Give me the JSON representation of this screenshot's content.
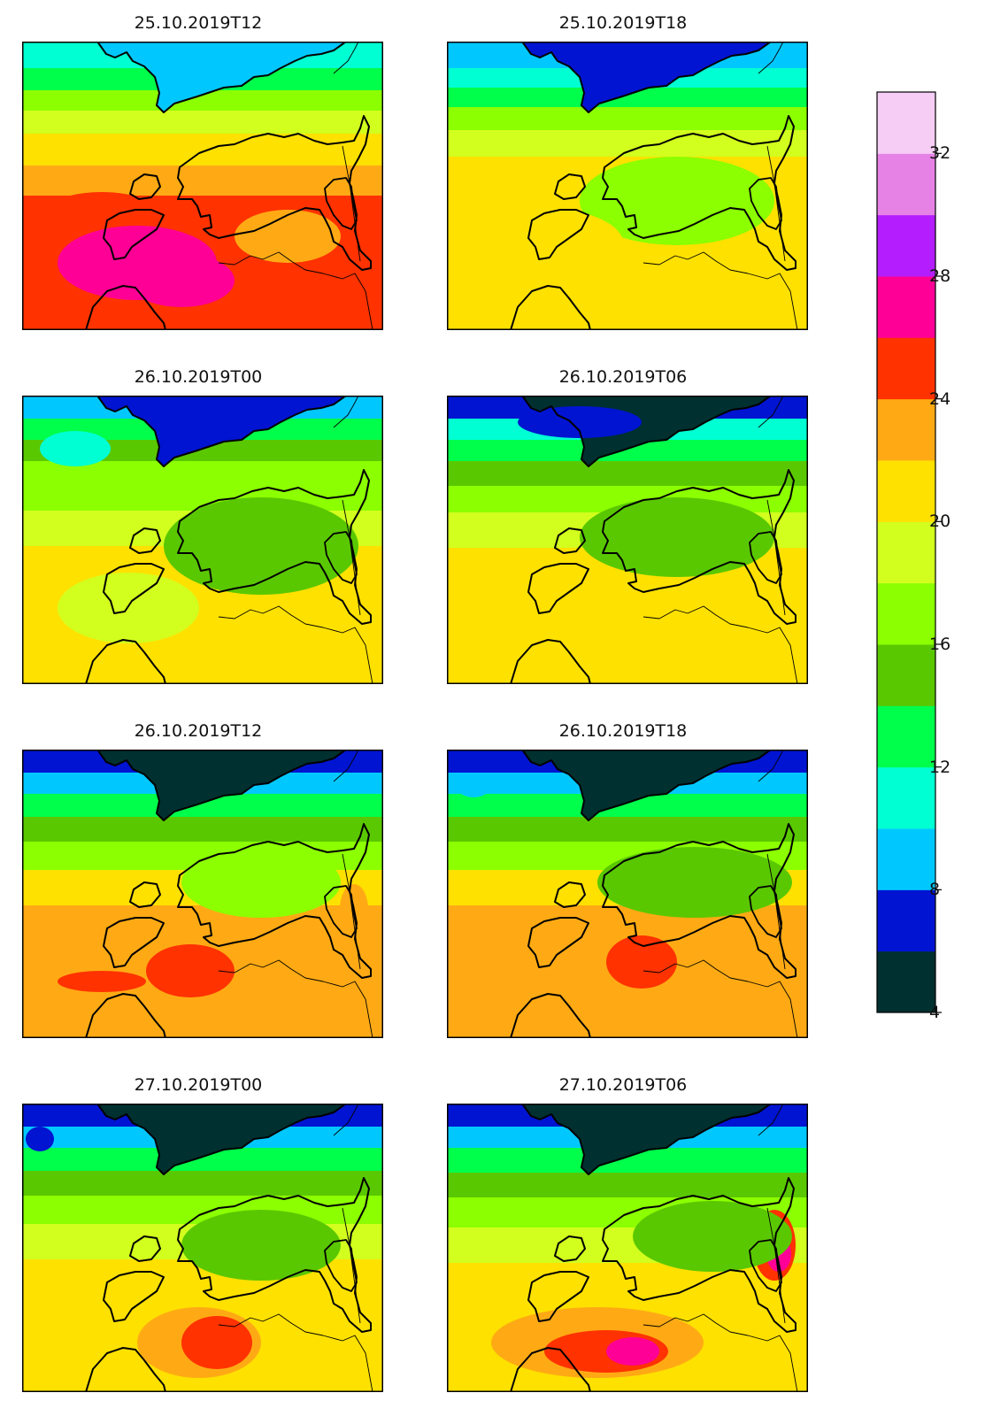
{
  "panels": [
    {
      "title": "25.10.2019T12",
      "scenario": 0
    },
    {
      "title": "25.10.2019T18",
      "scenario": 1
    },
    {
      "title": "26.10.2019T00",
      "scenario": 2
    },
    {
      "title": "26.10.2019T06",
      "scenario": 3
    },
    {
      "title": "26.10.2019T12",
      "scenario": 4
    },
    {
      "title": "26.10.2019T18",
      "scenario": 5
    },
    {
      "title": "27.10.2019T00",
      "scenario": 6
    },
    {
      "title": "27.10.2019T06",
      "scenario": 7
    }
  ],
  "colorbar": {
    "min": 4,
    "max": 34,
    "step": 2,
    "tick_labels": [
      "4",
      "8",
      "12",
      "16",
      "20",
      "24",
      "28",
      "32"
    ],
    "tick_values": [
      4,
      8,
      12,
      16,
      20,
      24,
      28,
      32
    ],
    "colors": [
      "#003030",
      "#0014d2",
      "#00c8ff",
      "#00ffd2",
      "#00ff4b",
      "#5ac800",
      "#8cff00",
      "#d2ff1e",
      "#ffe100",
      "#ffaa14",
      "#ff3200",
      "#ff0096",
      "#b41eff",
      "#e682e6",
      "#f5cdf5"
    ]
  }
}
